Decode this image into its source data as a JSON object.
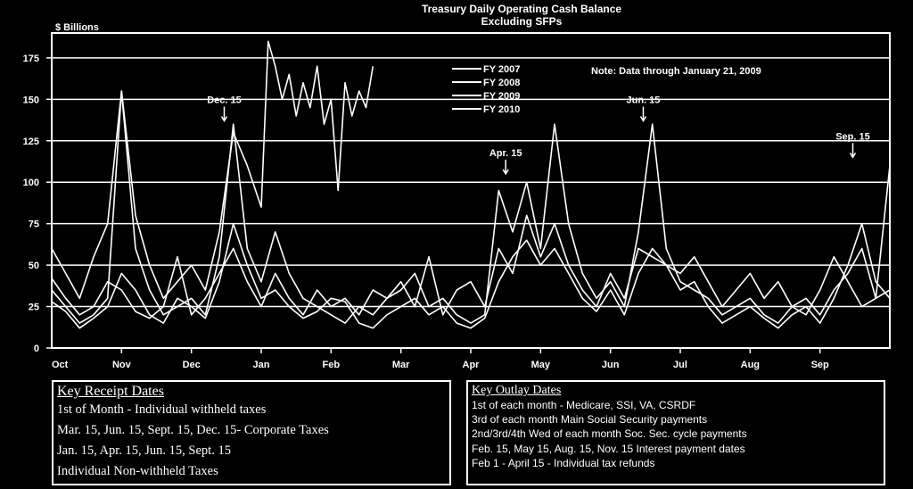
{
  "chart_data": {
    "type": "line",
    "title": "Treasury Daily Operating Cash Balance",
    "subtitle": "Excluding SFPs",
    "ylabel": "$ Billions",
    "ylim": [
      0,
      190
    ],
    "yticks": [
      0,
      25,
      50,
      75,
      100,
      125,
      150,
      175
    ],
    "xlim": [
      0,
      12
    ],
    "months": [
      "Oct",
      "Nov",
      "Dec",
      "Jan",
      "Feb",
      "Mar",
      "Apr",
      "May",
      "Jun",
      "Jul",
      "Aug",
      "Sep"
    ],
    "grid": "horizontal",
    "legend_position": "top-center",
    "note": "Note: Data through January 21, 2009",
    "annotations": [
      {
        "text": "Dec. 15",
        "x": 2.47,
        "y": 137
      },
      {
        "text": "Apr. 15",
        "x": 6.5,
        "y": 105
      },
      {
        "text": "Jun. 15",
        "x": 8.47,
        "y": 137
      },
      {
        "text": "Sep. 15",
        "x": 11.47,
        "y": 115
      }
    ],
    "series": [
      {
        "name": "FY 2007",
        "x": [
          0,
          0.2,
          0.4,
          0.6,
          0.8,
          1.0,
          1.2,
          1.4,
          1.6,
          1.8,
          2.0,
          2.2,
          2.4,
          2.6,
          2.8,
          3.0,
          3.2,
          3.4,
          3.6,
          3.8,
          4.0,
          4.2,
          4.4,
          4.6,
          4.8,
          5.0,
          5.2,
          5.4,
          5.6,
          5.8,
          6.0,
          6.2,
          6.4,
          6.6,
          6.8,
          7.0,
          7.2,
          7.4,
          7.6,
          7.8,
          8.0,
          8.2,
          8.4,
          8.6,
          8.8,
          9.0,
          9.2,
          9.4,
          9.6,
          9.8,
          10.0,
          10.2,
          10.4,
          10.6,
          10.8,
          11.0,
          11.2,
          11.4,
          11.6,
          11.8,
          12.0
        ],
        "values": [
          42,
          30,
          20,
          25,
          40,
          35,
          22,
          18,
          25,
          55,
          20,
          30,
          45,
          60,
          40,
          25,
          45,
          30,
          20,
          35,
          25,
          30,
          20,
          35,
          30,
          40,
          25,
          55,
          20,
          35,
          40,
          25,
          60,
          45,
          80,
          55,
          75,
          50,
          35,
          25,
          45,
          30,
          60,
          55,
          50,
          45,
          55,
          40,
          25,
          35,
          45,
          30,
          40,
          25,
          20,
          35,
          55,
          40,
          25,
          30,
          35
        ]
      },
      {
        "name": "FY 2008",
        "x": [
          0,
          0.2,
          0.4,
          0.6,
          0.8,
          1.0,
          1.2,
          1.4,
          1.6,
          1.8,
          2.0,
          2.2,
          2.4,
          2.6,
          2.8,
          3.0,
          3.2,
          3.4,
          3.6,
          3.8,
          4.0,
          4.2,
          4.4,
          4.6,
          4.8,
          5.0,
          5.2,
          5.4,
          5.6,
          5.8,
          6.0,
          6.2,
          6.4,
          6.6,
          6.8,
          7.0,
          7.2,
          7.4,
          7.6,
          7.8,
          8.0,
          8.2,
          8.4,
          8.6,
          8.8,
          9.0,
          9.2,
          9.4,
          9.6,
          9.8,
          10.0,
          10.2,
          10.4,
          10.6,
          10.8,
          11.0,
          11.2,
          11.4,
          11.6,
          11.8,
          12.0
        ],
        "values": [
          35,
          25,
          15,
          20,
          30,
          155,
          60,
          35,
          20,
          25,
          30,
          20,
          55,
          135,
          60,
          40,
          70,
          45,
          30,
          25,
          20,
          15,
          25,
          20,
          30,
          35,
          45,
          25,
          30,
          20,
          15,
          20,
          95,
          70,
          100,
          60,
          135,
          75,
          45,
          30,
          40,
          25,
          70,
          135,
          60,
          40,
          35,
          30,
          20,
          25,
          30,
          20,
          15,
          25,
          30,
          20,
          35,
          45,
          60,
          30,
          110
        ]
      },
      {
        "name": "FY 2009",
        "x": [
          0,
          0.2,
          0.4,
          0.6,
          0.8,
          1.0,
          1.2,
          1.4,
          1.6,
          1.8,
          2.0,
          2.2,
          2.4,
          2.6,
          2.8,
          3.0,
          3.2,
          3.4,
          3.6,
          3.8,
          4.0,
          4.2,
          4.4,
          4.6,
          4.8,
          5.0,
          5.2,
          5.4,
          5.6,
          5.8,
          6.0,
          6.2,
          6.4,
          6.6,
          6.8,
          7.0,
          7.2,
          7.4,
          7.6,
          7.8,
          8.0,
          8.2,
          8.4,
          8.6,
          8.8,
          9.0,
          9.2,
          9.4,
          9.6,
          9.8,
          10.0,
          10.2,
          10.4,
          10.6,
          10.8,
          11.0,
          11.2,
          11.4,
          11.6,
          11.8,
          12.0
        ],
        "values": [
          28,
          22,
          12,
          18,
          25,
          45,
          35,
          20,
          15,
          30,
          25,
          18,
          40,
          75,
          50,
          30,
          35,
          25,
          18,
          22,
          30,
          28,
          15,
          12,
          20,
          25,
          30,
          20,
          25,
          15,
          12,
          18,
          40,
          55,
          65,
          50,
          60,
          45,
          30,
          22,
          35,
          20,
          45,
          60,
          50,
          35,
          40,
          25,
          15,
          20,
          25,
          18,
          12,
          20,
          25,
          15,
          30,
          50,
          75,
          40,
          30
        ]
      },
      {
        "name": "FY 2010",
        "x": [
          0,
          0.2,
          0.4,
          0.6,
          0.8,
          1.0,
          1.2,
          1.4,
          1.6,
          1.8,
          2.0,
          2.2,
          2.4,
          2.6,
          2.8,
          3.0,
          3.1,
          3.2,
          3.3,
          3.4,
          3.5,
          3.6,
          3.7,
          3.8,
          3.9,
          4.0,
          4.1,
          4.2,
          4.3,
          4.4,
          4.5,
          4.6
        ],
        "values": [
          60,
          45,
          30,
          55,
          75,
          155,
          80,
          50,
          30,
          40,
          50,
          35,
          70,
          130,
          110,
          85,
          185,
          170,
          150,
          165,
          140,
          160,
          145,
          170,
          135,
          150,
          95,
          160,
          140,
          155,
          145,
          170
        ]
      }
    ]
  },
  "receipt_box": {
    "heading": "Key Receipt Dates",
    "lines": [
      "1st of Month - Individual withheld taxes",
      "Mar. 15, Jun. 15, Sept. 15, Dec. 15- Corporate Taxes",
      "Jan. 15, Apr. 15, Jun. 15, Sept. 15",
      "Individual Non-withheld Taxes"
    ]
  },
  "outlay_box": {
    "heading": "Key Outlay Dates",
    "lines": [
      "1st of each month - Medicare, SSI, VA, CSRDF",
      "3rd of each month Main Social Security payments",
      "2nd/3rd/4th Wed of each month Soc. Sec. cycle payments",
      "Feb. 15, May 15, Aug. 15, Nov. 15 Interest payment dates",
      "Feb 1 - April 15 - Individual tax refunds"
    ]
  }
}
